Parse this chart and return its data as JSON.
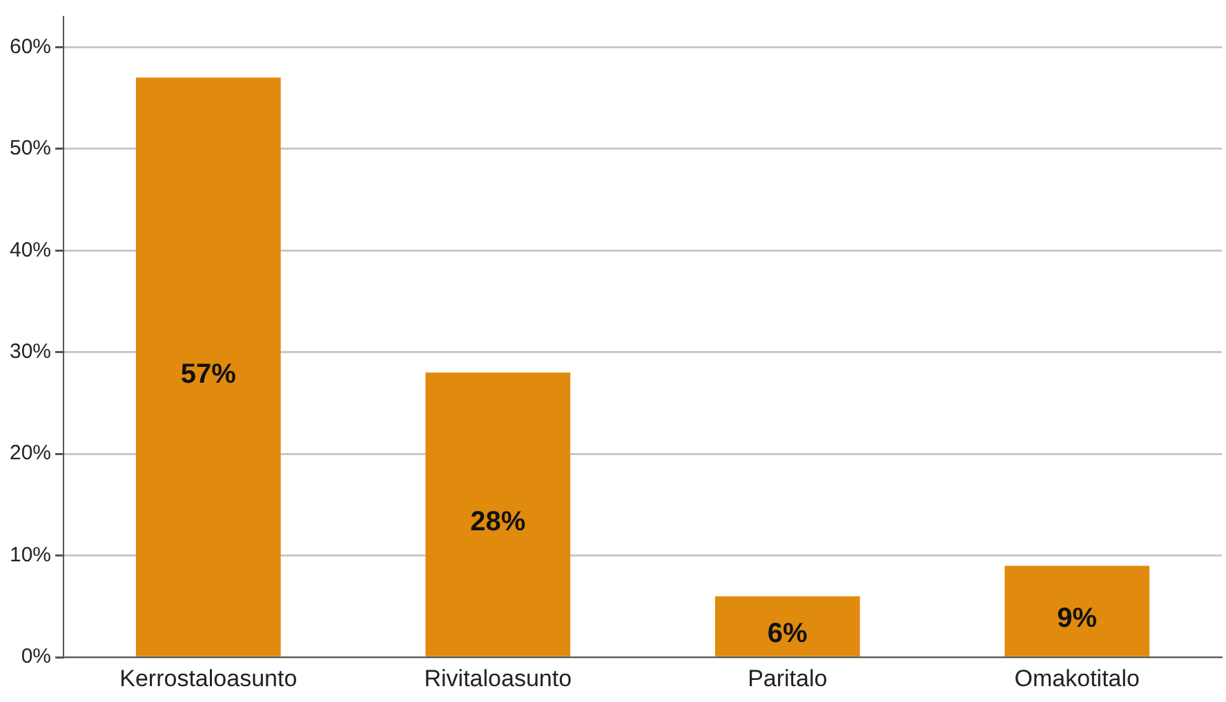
{
  "chart_data": {
    "type": "bar",
    "categories": [
      "Kerrostaloasunto",
      "Rivitaloasunto",
      "Paritalo",
      "Omakotitalo"
    ],
    "values": [
      57,
      28,
      6,
      9
    ],
    "color": "#e08a0e",
    "value_labels": [
      "57%",
      "28%",
      "6%",
      "9%"
    ],
    "ylim": [
      0,
      63
    ],
    "yticks": [
      {
        "value": 0,
        "label": "0%"
      },
      {
        "value": 10,
        "label": "10%"
      },
      {
        "value": 20,
        "label": "20%"
      },
      {
        "value": 30,
        "label": "30%"
      },
      {
        "value": 40,
        "label": "40%"
      },
      {
        "value": 50,
        "label": "50%"
      },
      {
        "value": 60,
        "label": "60%"
      }
    ],
    "grid": "y",
    "legend": false
  }
}
